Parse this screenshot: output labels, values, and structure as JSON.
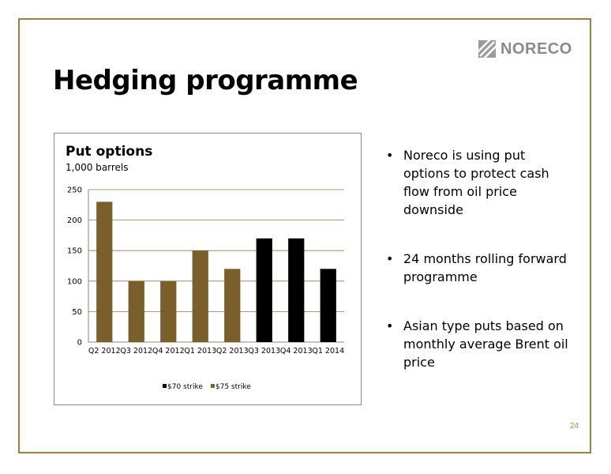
{
  "brand": {
    "name": "NORECO"
  },
  "slide": {
    "title": "Hedging programme",
    "page_number": "24"
  },
  "bullets": [
    "Noreco is using put options to protect cash flow from oil price downside",
    "24 months rolling forward programme",
    "Asian type puts based on monthly average Brent oil price"
  ],
  "chart_data": {
    "type": "bar",
    "title": "Put options",
    "subtitle": "1,000 barrels",
    "categories": [
      "Q2 2012",
      "Q3 2012",
      "Q4 2012",
      "Q1 2013",
      "Q2 2013",
      "Q3 2013",
      "Q4 2013",
      "Q1 2014"
    ],
    "values": [
      230,
      100,
      100,
      150,
      120,
      170,
      170,
      120
    ],
    "series_by_bar": [
      "$75 strike",
      "$75 strike",
      "$75 strike",
      "$75 strike",
      "$75 strike",
      "$70 strike",
      "$70 strike",
      "$70 strike"
    ],
    "legend": [
      {
        "name": "$70 strike",
        "color": "#000000"
      },
      {
        "name": "$75 strike",
        "color": "#7a5f2a"
      }
    ],
    "legend_position": "bottom",
    "ylim": [
      0,
      250
    ],
    "yticks": [
      0,
      50,
      100,
      150,
      200,
      250
    ],
    "grid": true,
    "colors": {
      "$75 strike": "#7a5f2a",
      "$70 strike": "#000000",
      "grid": "#8c7a4e"
    }
  }
}
